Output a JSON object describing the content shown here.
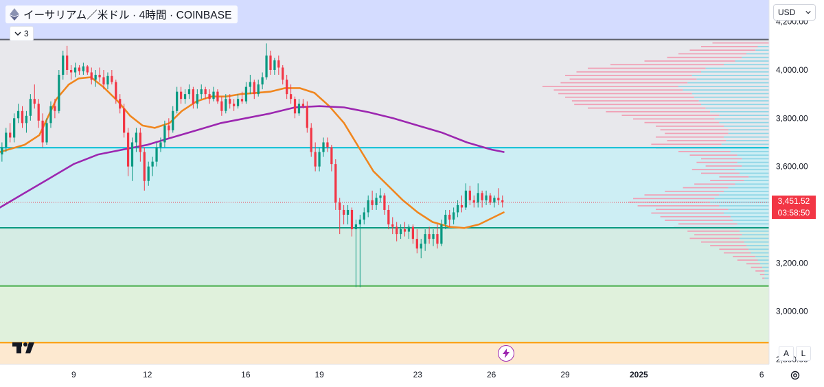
{
  "header": {
    "title": "イーサリアム／米ドル · 4時間 · COINBASE",
    "collapse_count": "3"
  },
  "toolbar": {
    "currency": "USD",
    "auto_label": "A",
    "log_label": "L"
  },
  "price_label": {
    "price": "3,451.52",
    "countdown": "03:58:50",
    "color": "#f23645"
  },
  "icons": {
    "symbol": "ethereum-icon",
    "collapse": "chevron-down-icon",
    "currency": "chevron-down-icon",
    "logo": "tradingview-logo",
    "bolt": "lightning-icon",
    "settings": "gear-icon"
  },
  "chart_data": {
    "type": "candlestick",
    "y_range": [
      2780,
      4290
    ],
    "y_ticks": [
      {
        "value": 4200,
        "label": "4,200.00"
      },
      {
        "value": 4000,
        "label": "4,000.00"
      },
      {
        "value": 3800,
        "label": "3,800.00"
      },
      {
        "value": 3600,
        "label": "3,600.00"
      },
      {
        "value": 3400,
        "label": "3,400.00"
      },
      {
        "value": 3200,
        "label": "3,200.00"
      },
      {
        "value": 3000,
        "label": "3,000.00"
      },
      {
        "value": 2800,
        "label": "2,800.00"
      }
    ],
    "x_range_days": [
      6.0,
      37.3
    ],
    "x_ticks": [
      {
        "day": 9,
        "label": "9"
      },
      {
        "day": 12,
        "label": "12"
      },
      {
        "day": 16,
        "label": "16"
      },
      {
        "day": 19,
        "label": "19"
      },
      {
        "day": 23,
        "label": "23"
      },
      {
        "day": 26,
        "label": "26"
      },
      {
        "day": 29,
        "label": "29"
      },
      {
        "day": 32,
        "label": "2025",
        "bold": true
      },
      {
        "day": 37,
        "label": "6"
      }
    ],
    "last_price": 3451.52,
    "horizontal_levels": [
      {
        "price": 4126,
        "color": "#5d606b"
      },
      {
        "price": 3678,
        "color": "#00bcd4"
      },
      {
        "price": 3346,
        "color": "#089981"
      },
      {
        "price": 3105,
        "color": "#4caf50"
      },
      {
        "price": 2870,
        "color": "#ff9800"
      }
    ],
    "zones": [
      {
        "from": 4126,
        "to": 4290,
        "color": "#d4dcff"
      },
      {
        "from": 3678,
        "to": 4126,
        "color": "#e8e8ec"
      },
      {
        "from": 3346,
        "to": 3678,
        "color": "#cdeef4"
      },
      {
        "from": 3105,
        "to": 3346,
        "color": "#d5ece4"
      },
      {
        "from": 2870,
        "to": 3105,
        "color": "#e0f1dc"
      },
      {
        "from": 2780,
        "to": 2870,
        "color": "#fde9d0"
      }
    ],
    "candles_ohlc": [
      [
        3650,
        3700,
        3620,
        3680
      ],
      [
        3680,
        3760,
        3660,
        3740
      ],
      [
        3740,
        3780,
        3700,
        3720
      ],
      [
        3720,
        3820,
        3700,
        3800
      ],
      [
        3800,
        3860,
        3780,
        3830
      ],
      [
        3830,
        3850,
        3760,
        3780
      ],
      [
        3780,
        3830,
        3740,
        3810
      ],
      [
        3810,
        3900,
        3790,
        3880
      ],
      [
        3880,
        3940,
        3840,
        3860
      ],
      [
        3860,
        3880,
        3760,
        3790
      ],
      [
        3790,
        3820,
        3680,
        3700
      ],
      [
        3700,
        3800,
        3690,
        3780
      ],
      [
        3780,
        3870,
        3760,
        3850
      ],
      [
        3850,
        3880,
        3800,
        3830
      ],
      [
        3830,
        4000,
        3820,
        3980
      ],
      [
        3980,
        4080,
        3960,
        4060
      ],
      [
        4060,
        4100,
        3980,
        4000
      ],
      [
        4000,
        4020,
        3960,
        3990
      ],
      [
        3990,
        4030,
        3970,
        4010
      ],
      [
        4010,
        4020,
        3980,
        3995
      ],
      [
        3995,
        4030,
        3980,
        4015
      ],
      [
        4015,
        4020,
        3980,
        3990
      ],
      [
        3990,
        4010,
        3940,
        3960
      ],
      [
        3960,
        4000,
        3930,
        3980
      ],
      [
        3980,
        4010,
        3950,
        3970
      ],
      [
        3970,
        4000,
        3920,
        3940
      ],
      [
        3940,
        3990,
        3920,
        3975
      ],
      [
        3975,
        4000,
        3940,
        3950
      ],
      [
        3950,
        3960,
        3860,
        3880
      ],
      [
        3880,
        3900,
        3820,
        3840
      ],
      [
        3840,
        3860,
        3720,
        3740
      ],
      [
        3740,
        3760,
        3560,
        3600
      ],
      [
        3600,
        3720,
        3540,
        3700
      ],
      [
        3700,
        3760,
        3660,
        3740
      ],
      [
        3740,
        3760,
        3620,
        3660
      ],
      [
        3660,
        3680,
        3500,
        3540
      ],
      [
        3540,
        3620,
        3520,
        3600
      ],
      [
        3600,
        3640,
        3560,
        3620
      ],
      [
        3620,
        3700,
        3600,
        3680
      ],
      [
        3680,
        3720,
        3660,
        3700
      ],
      [
        3700,
        3790,
        3680,
        3770
      ],
      [
        3770,
        3800,
        3720,
        3750
      ],
      [
        3750,
        3850,
        3740,
        3830
      ],
      [
        3830,
        3930,
        3820,
        3910
      ],
      [
        3910,
        3930,
        3860,
        3880
      ],
      [
        3880,
        3920,
        3860,
        3900
      ],
      [
        3900,
        3940,
        3880,
        3920
      ],
      [
        3920,
        3930,
        3840,
        3860
      ],
      [
        3860,
        3920,
        3840,
        3900
      ],
      [
        3900,
        3940,
        3880,
        3920
      ],
      [
        3920,
        3930,
        3880,
        3900
      ],
      [
        3900,
        3920,
        3860,
        3880
      ],
      [
        3880,
        3930,
        3870,
        3910
      ],
      [
        3910,
        3920,
        3860,
        3870
      ],
      [
        3870,
        3890,
        3810,
        3830
      ],
      [
        3830,
        3900,
        3820,
        3880
      ],
      [
        3880,
        3900,
        3840,
        3860
      ],
      [
        3860,
        3880,
        3830,
        3850
      ],
      [
        3850,
        3900,
        3840,
        3880
      ],
      [
        3880,
        3910,
        3860,
        3870
      ],
      [
        3870,
        3950,
        3860,
        3930
      ],
      [
        3930,
        3980,
        3900,
        3950
      ],
      [
        3950,
        3960,
        3880,
        3900
      ],
      [
        3900,
        3960,
        3890,
        3940
      ],
      [
        3940,
        3990,
        3920,
        3970
      ],
      [
        3970,
        4110,
        3960,
        4060
      ],
      [
        4060,
        4080,
        3980,
        4000
      ],
      [
        4000,
        4050,
        3980,
        4040
      ],
      [
        4040,
        4060,
        3980,
        4010
      ],
      [
        4010,
        4020,
        3940,
        3960
      ],
      [
        3960,
        3980,
        3880,
        3900
      ],
      [
        3900,
        3940,
        3860,
        3880
      ],
      [
        3880,
        3890,
        3800,
        3820
      ],
      [
        3820,
        3880,
        3810,
        3860
      ],
      [
        3860,
        3880,
        3840,
        3850
      ],
      [
        3850,
        3870,
        3740,
        3760
      ],
      [
        3760,
        3780,
        3640,
        3660
      ],
      [
        3660,
        3700,
        3580,
        3600
      ],
      [
        3600,
        3680,
        3580,
        3660
      ],
      [
        3660,
        3720,
        3640,
        3700
      ],
      [
        3700,
        3720,
        3660,
        3680
      ],
      [
        3680,
        3690,
        3580,
        3610
      ],
      [
        3610,
        3630,
        3420,
        3450
      ],
      [
        3450,
        3470,
        3320,
        3420
      ],
      [
        3420,
        3440,
        3360,
        3400
      ],
      [
        3400,
        3440,
        3360,
        3420
      ],
      [
        3420,
        3430,
        3310,
        3340
      ],
      [
        3340,
        3380,
        3100,
        3360
      ],
      [
        3360,
        3400,
        3100,
        3380
      ],
      [
        3380,
        3430,
        3360,
        3410
      ],
      [
        3410,
        3480,
        3390,
        3460
      ],
      [
        3460,
        3500,
        3420,
        3440
      ],
      [
        3440,
        3490,
        3420,
        3470
      ],
      [
        3470,
        3510,
        3450,
        3480
      ],
      [
        3480,
        3490,
        3400,
        3420
      ],
      [
        3420,
        3440,
        3340,
        3360
      ],
      [
        3360,
        3390,
        3320,
        3350
      ],
      [
        3350,
        3370,
        3290,
        3320
      ],
      [
        3320,
        3360,
        3300,
        3340
      ],
      [
        3340,
        3370,
        3310,
        3330
      ],
      [
        3330,
        3360,
        3300,
        3350
      ],
      [
        3350,
        3360,
        3280,
        3300
      ],
      [
        3300,
        3340,
        3240,
        3260
      ],
      [
        3260,
        3300,
        3220,
        3280
      ],
      [
        3280,
        3340,
        3250,
        3320
      ],
      [
        3320,
        3350,
        3280,
        3300
      ],
      [
        3300,
        3340,
        3270,
        3320
      ],
      [
        3320,
        3360,
        3260,
        3280
      ],
      [
        3280,
        3380,
        3270,
        3360
      ],
      [
        3360,
        3420,
        3340,
        3400
      ],
      [
        3400,
        3420,
        3350,
        3380
      ],
      [
        3380,
        3430,
        3360,
        3410
      ],
      [
        3410,
        3460,
        3390,
        3440
      ],
      [
        3440,
        3480,
        3410,
        3430
      ],
      [
        3430,
        3530,
        3420,
        3500
      ],
      [
        3500,
        3520,
        3440,
        3460
      ],
      [
        3460,
        3480,
        3430,
        3450
      ],
      [
        3450,
        3530,
        3430,
        3490
      ],
      [
        3490,
        3500,
        3430,
        3460
      ],
      [
        3460,
        3500,
        3440,
        3480
      ],
      [
        3480,
        3490,
        3440,
        3450
      ],
      [
        3450,
        3480,
        3430,
        3470
      ],
      [
        3470,
        3510,
        3440,
        3460
      ],
      [
        3460,
        3480,
        3430,
        3451.52
      ]
    ],
    "series": [
      {
        "color": "#f0861e",
        "values": [
          [
            6.0,
            3660
          ],
          [
            7.0,
            3690
          ],
          [
            7.6,
            3730
          ],
          [
            8.3,
            3880
          ],
          [
            8.8,
            3940
          ],
          [
            9.2,
            3965
          ],
          [
            9.7,
            3970
          ],
          [
            10.2,
            3930
          ],
          [
            10.8,
            3870
          ],
          [
            11.3,
            3810
          ],
          [
            11.8,
            3770
          ],
          [
            12.3,
            3760
          ],
          [
            12.9,
            3780
          ],
          [
            13.4,
            3830
          ],
          [
            14.0,
            3870
          ],
          [
            14.6,
            3890
          ],
          [
            15.2,
            3890
          ],
          [
            15.8,
            3900
          ],
          [
            16.4,
            3905
          ],
          [
            17.0,
            3910
          ],
          [
            17.6,
            3925
          ],
          [
            18.2,
            3925
          ],
          [
            18.8,
            3905
          ],
          [
            19.4,
            3850
          ],
          [
            20.0,
            3780
          ],
          [
            20.6,
            3680
          ],
          [
            21.2,
            3580
          ],
          [
            21.8,
            3520
          ],
          [
            22.4,
            3460
          ],
          [
            23.0,
            3410
          ],
          [
            23.6,
            3370
          ],
          [
            24.3,
            3350
          ],
          [
            24.9,
            3345
          ],
          [
            25.5,
            3360
          ],
          [
            26.1,
            3390
          ],
          [
            26.5,
            3410
          ]
        ]
      },
      {
        "color": "#9c27b0",
        "values": [
          [
            6.0,
            3430
          ],
          [
            7.0,
            3490
          ],
          [
            8.0,
            3550
          ],
          [
            9.0,
            3610
          ],
          [
            10.0,
            3650
          ],
          [
            11.0,
            3670
          ],
          [
            12.0,
            3690
          ],
          [
            13.0,
            3720
          ],
          [
            14.0,
            3750
          ],
          [
            15.0,
            3780
          ],
          [
            16.0,
            3800
          ],
          [
            17.0,
            3820
          ],
          [
            18.0,
            3845
          ],
          [
            19.0,
            3850
          ],
          [
            20.0,
            3845
          ],
          [
            21.0,
            3825
          ],
          [
            22.0,
            3800
          ],
          [
            23.0,
            3770
          ],
          [
            24.0,
            3740
          ],
          [
            25.0,
            3700
          ],
          [
            26.0,
            3670
          ],
          [
            26.5,
            3660
          ]
        ]
      }
    ],
    "volume_profile": [
      [
        4110,
        0.25,
        0.0
      ],
      [
        4095,
        0.3,
        0.05
      ],
      [
        4080,
        0.35,
        0.06
      ],
      [
        4065,
        0.4,
        0.1
      ],
      [
        4050,
        0.45,
        0.12
      ],
      [
        4035,
        0.55,
        0.15
      ],
      [
        4020,
        0.7,
        0.2
      ],
      [
        4005,
        0.8,
        0.28
      ],
      [
        3990,
        0.85,
        0.3
      ],
      [
        3975,
        0.9,
        0.34
      ],
      [
        3960,
        0.88,
        0.32
      ],
      [
        3945,
        0.92,
        0.36
      ],
      [
        3930,
        1.0,
        0.4
      ],
      [
        3915,
        0.95,
        0.38
      ],
      [
        3900,
        0.93,
        0.34
      ],
      [
        3885,
        0.9,
        0.33
      ],
      [
        3870,
        0.87,
        0.31
      ],
      [
        3855,
        0.86,
        0.3
      ],
      [
        3840,
        0.8,
        0.28
      ],
      [
        3825,
        0.72,
        0.26
      ],
      [
        3810,
        0.65,
        0.22
      ],
      [
        3795,
        0.6,
        0.24
      ],
      [
        3780,
        0.55,
        0.22
      ],
      [
        3765,
        0.5,
        0.2
      ],
      [
        3750,
        0.48,
        0.18
      ],
      [
        3735,
        0.46,
        0.18
      ],
      [
        3720,
        0.5,
        0.2
      ],
      [
        3705,
        0.45,
        0.19
      ],
      [
        3690,
        0.52,
        0.21
      ],
      [
        3675,
        0.5,
        0.22
      ],
      [
        3660,
        0.4,
        0.17
      ],
      [
        3645,
        0.35,
        0.14
      ],
      [
        3630,
        0.3,
        0.12
      ],
      [
        3615,
        0.32,
        0.14
      ],
      [
        3600,
        0.28,
        0.12
      ],
      [
        3585,
        0.34,
        0.15
      ],
      [
        3570,
        0.3,
        0.13
      ],
      [
        3555,
        0.22,
        0.09
      ],
      [
        3540,
        0.26,
        0.11
      ],
      [
        3525,
        0.33,
        0.15
      ],
      [
        3510,
        0.38,
        0.18
      ],
      [
        3495,
        0.46,
        0.2
      ],
      [
        3480,
        0.55,
        0.22
      ],
      [
        3465,
        0.6,
        0.24
      ],
      [
        3450,
        0.62,
        0.26
      ],
      [
        3435,
        0.58,
        0.22
      ],
      [
        3420,
        0.5,
        0.18
      ],
      [
        3405,
        0.52,
        0.2
      ],
      [
        3390,
        0.48,
        0.17
      ],
      [
        3375,
        0.46,
        0.16
      ],
      [
        3360,
        0.4,
        0.14
      ],
      [
        3345,
        0.42,
        0.15
      ],
      [
        3330,
        0.36,
        0.13
      ],
      [
        3315,
        0.33,
        0.12
      ],
      [
        3300,
        0.35,
        0.13
      ],
      [
        3285,
        0.3,
        0.11
      ],
      [
        3270,
        0.26,
        0.1
      ],
      [
        3255,
        0.22,
        0.09
      ],
      [
        3240,
        0.2,
        0.08
      ],
      [
        3225,
        0.16,
        0.06
      ],
      [
        3210,
        0.14,
        0.05
      ],
      [
        3195,
        0.1,
        0.04
      ],
      [
        3180,
        0.08,
        0.03
      ],
      [
        3165,
        0.06,
        0.02
      ],
      [
        3150,
        0.04,
        0.02
      ],
      [
        3135,
        0.03,
        0.02
      ]
    ],
    "colors": {
      "up": "#089981",
      "down": "#f23645",
      "profile_pink": "#f0a0b5",
      "profile_cyan": "#8fd6e6"
    }
  }
}
